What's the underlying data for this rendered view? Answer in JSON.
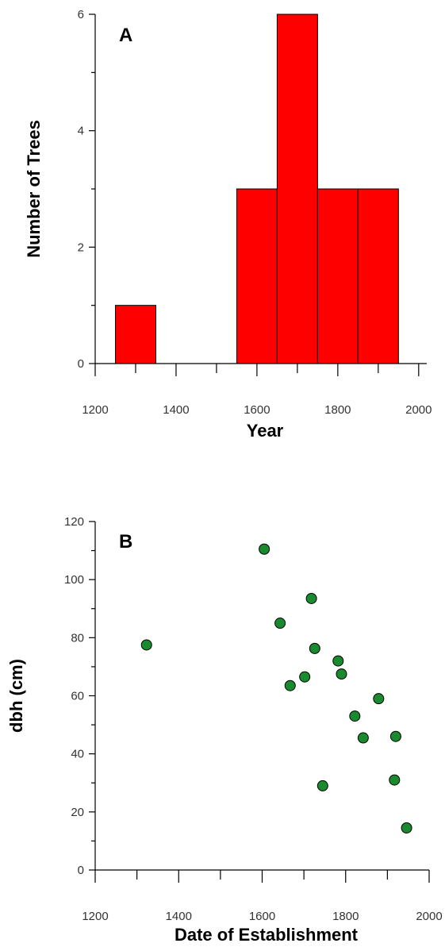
{
  "chart_data": [
    {
      "type": "bar",
      "panel_label": "A",
      "xlabel": "Year",
      "ylabel": "Number of Trees",
      "xlim": [
        1200,
        2020
      ],
      "ylim": [
        0,
        6
      ],
      "x_ticks": [
        1200,
        1400,
        1600,
        1800,
        2000
      ],
      "x_minor_ticks": [
        1300,
        1500,
        1700,
        1900
      ],
      "y_ticks": [
        0,
        2,
        4,
        6
      ],
      "y_minor_ticks": [
        1,
        3,
        5
      ],
      "bin_width": 100,
      "bins": [
        {
          "start": 1250,
          "end": 1350,
          "value": 1
        },
        {
          "start": 1350,
          "end": 1450,
          "value": 0
        },
        {
          "start": 1450,
          "end": 1550,
          "value": 0
        },
        {
          "start": 1550,
          "end": 1650,
          "value": 3
        },
        {
          "start": 1650,
          "end": 1750,
          "value": 6
        },
        {
          "start": 1750,
          "end": 1850,
          "value": 3
        },
        {
          "start": 1850,
          "end": 1950,
          "value": 3
        }
      ],
      "bar_color": "#ff0000",
      "grid": false
    },
    {
      "type": "scatter",
      "panel_label": "B",
      "xlabel": "Date of Establishment",
      "ylabel": "dbh (cm)",
      "xlim": [
        1200,
        2000
      ],
      "ylim": [
        0,
        120
      ],
      "x_ticks": [
        1200,
        1400,
        1600,
        1800,
        2000
      ],
      "x_minor_ticks": [
        1300,
        1500,
        1700,
        1900
      ],
      "y_ticks": [
        0,
        20,
        40,
        60,
        80,
        100,
        120
      ],
      "y_minor_ticks": [
        10,
        30,
        50,
        70,
        90,
        110
      ],
      "points": [
        {
          "x": 1323,
          "y": 77.5
        },
        {
          "x": 1605,
          "y": 110.5
        },
        {
          "x": 1643,
          "y": 85
        },
        {
          "x": 1667,
          "y": 63.5
        },
        {
          "x": 1702,
          "y": 66.5
        },
        {
          "x": 1718,
          "y": 93.5
        },
        {
          "x": 1726,
          "y": 76.3
        },
        {
          "x": 1745,
          "y": 29
        },
        {
          "x": 1782,
          "y": 72
        },
        {
          "x": 1790,
          "y": 67.5
        },
        {
          "x": 1822,
          "y": 53
        },
        {
          "x": 1842,
          "y": 45.5
        },
        {
          "x": 1879,
          "y": 59
        },
        {
          "x": 1917,
          "y": 31
        },
        {
          "x": 1920,
          "y": 46
        },
        {
          "x": 1946,
          "y": 14.5
        }
      ],
      "point_color": "#1a8a2e",
      "grid": false
    }
  ]
}
